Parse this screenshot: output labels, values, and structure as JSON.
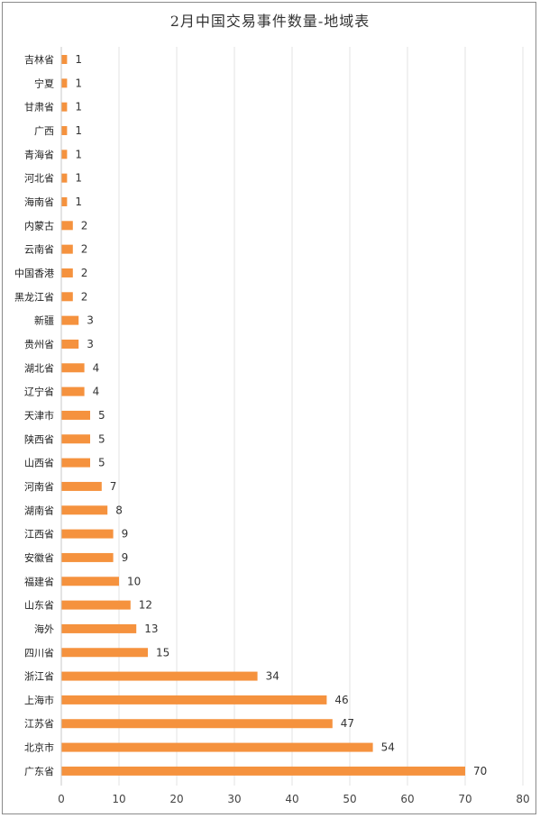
{
  "chart_data": {
    "type": "bar",
    "orientation": "horizontal",
    "title": "2月中国交易事件数量-地域表",
    "xlabel": "",
    "ylabel": "",
    "xlim": [
      0,
      80
    ],
    "ticks": [
      0,
      10,
      20,
      30,
      40,
      50,
      60,
      70,
      80
    ],
    "grid": "vertical",
    "legend": "none",
    "bar_color": "#f5923e",
    "categories": [
      "吉林省",
      "宁夏",
      "甘肃省",
      "广西",
      "青海省",
      "河北省",
      "海南省",
      "内蒙古",
      "云南省",
      "中国香港",
      "黑龙江省",
      "新疆",
      "贵州省",
      "湖北省",
      "辽宁省",
      "天津市",
      "陕西省",
      "山西省",
      "河南省",
      "湖南省",
      "江西省",
      "安徽省",
      "福建省",
      "山东省",
      "海外",
      "四川省",
      "浙江省",
      "上海市",
      "江苏省",
      "北京市",
      "广东省"
    ],
    "values": [
      1,
      1,
      1,
      1,
      1,
      1,
      1,
      2,
      2,
      2,
      2,
      3,
      3,
      4,
      4,
      5,
      5,
      5,
      7,
      8,
      9,
      9,
      10,
      12,
      13,
      15,
      34,
      46,
      47,
      54,
      70
    ]
  }
}
